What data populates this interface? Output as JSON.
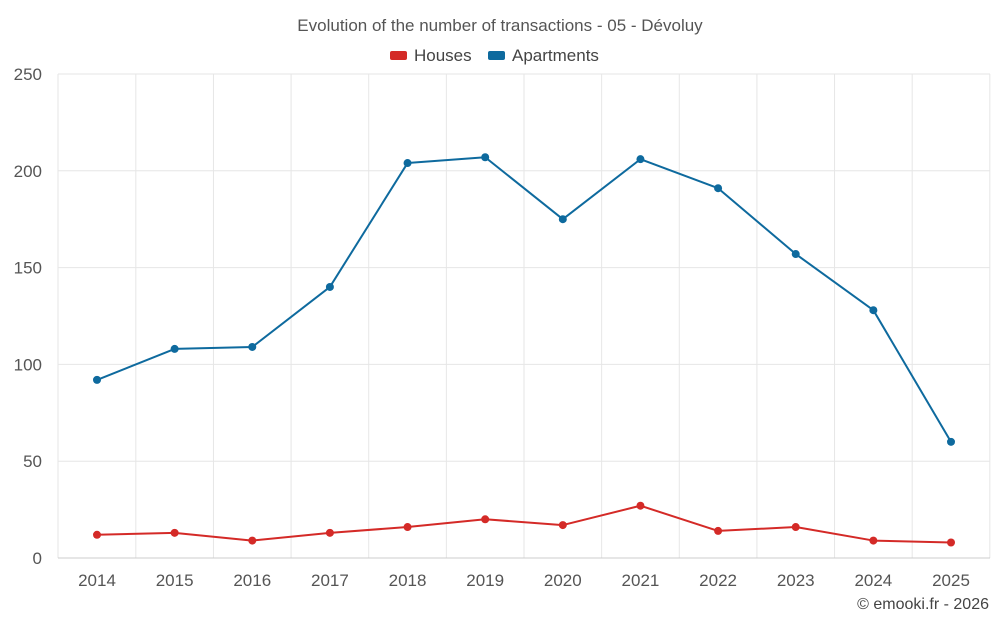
{
  "chart_data": {
    "type": "line",
    "title": "Evolution of the number of transactions - 05 - Dévoluy",
    "categories": [
      "2014",
      "2015",
      "2016",
      "2017",
      "2018",
      "2019",
      "2020",
      "2021",
      "2022",
      "2023",
      "2024",
      "2025"
    ],
    "series": [
      {
        "name": "Houses",
        "color": "#d42a27",
        "values": [
          12,
          13,
          9,
          13,
          16,
          20,
          17,
          27,
          14,
          16,
          9,
          8
        ]
      },
      {
        "name": "Apartments",
        "color": "#0e6a9e",
        "values": [
          92,
          108,
          109,
          140,
          204,
          207,
          175,
          206,
          191,
          157,
          128,
          60
        ]
      }
    ],
    "ylim": [
      0,
      250
    ],
    "yticks": [
      0,
      50,
      100,
      150,
      200,
      250
    ],
    "grid": true,
    "legend": "top-center"
  },
  "credit": "© emooki.fr - 2026"
}
